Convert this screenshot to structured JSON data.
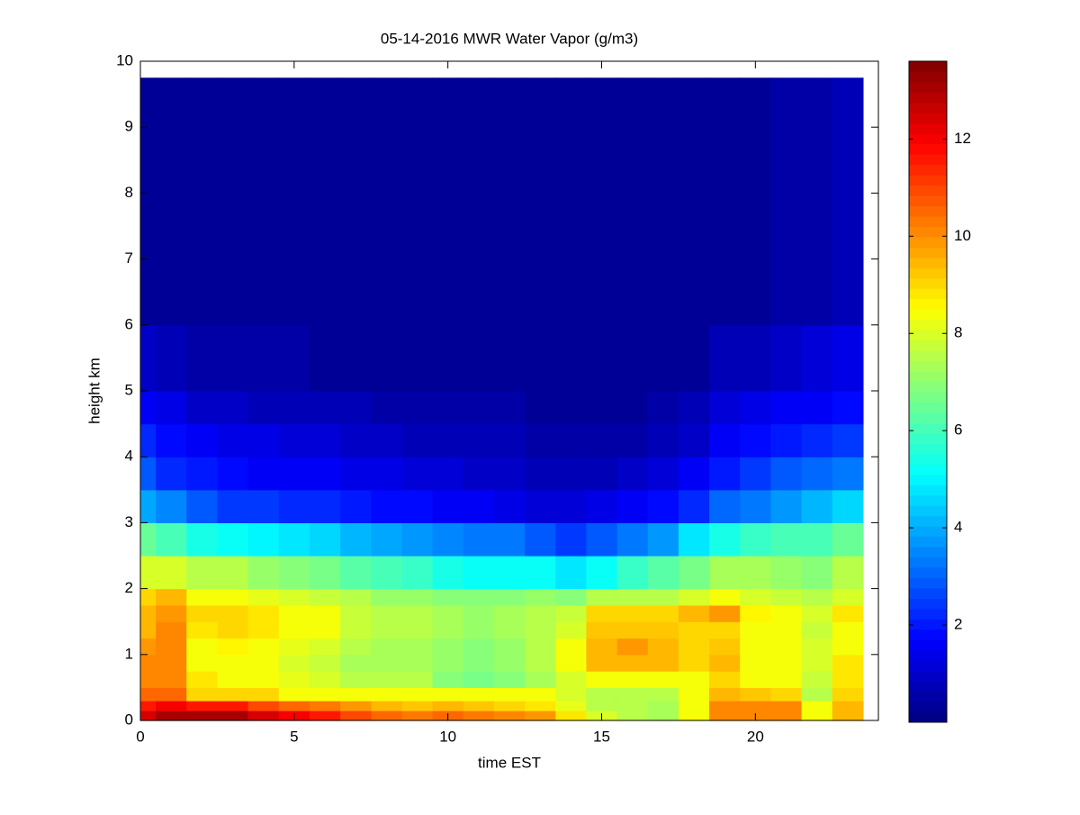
{
  "chart_data": {
    "type": "heatmap",
    "title": "05-14-2016 MWR Water Vapor (g/m3)",
    "x_label": "time EST",
    "y_label": "height km",
    "xlim": [
      0,
      24
    ],
    "ylim": [
      0,
      10
    ],
    "xticks": [
      0,
      5,
      10,
      15,
      20
    ],
    "yticks": [
      0,
      1,
      2,
      3,
      4,
      5,
      6,
      7,
      8,
      9,
      10
    ],
    "x_bins": [
      0,
      0.5,
      1.5,
      2.5,
      3.5,
      4.5,
      5.5,
      6.5,
      7.5,
      8.5,
      9.5,
      10.5,
      11.5,
      12.5,
      13.5,
      14.5,
      15.5,
      16.5,
      17.5,
      18.5,
      19.5,
      20.5,
      21.5,
      22.5,
      23.5
    ],
    "y_bins": [
      0,
      0.15,
      0.3,
      0.5,
      0.75,
      1.0,
      1.25,
      1.5,
      1.75,
      2.0,
      2.5,
      3.0,
      3.5,
      4.0,
      4.5,
      5.0,
      6.0,
      9.75
    ],
    "colormap": "jet",
    "zlim": [
      0,
      13.6
    ],
    "zticks": [
      2,
      4,
      6,
      8,
      10,
      12
    ],
    "z": [
      [
        12.5,
        11.5,
        10.5,
        10,
        10,
        9.8,
        9.5,
        9.5,
        9,
        8,
        6.5,
        4,
        2.8,
        2.2,
        1.5,
        1.0,
        0.4
      ],
      [
        13,
        12,
        10.5,
        10,
        10,
        10,
        10,
        9.8,
        9.5,
        8,
        6,
        3.5,
        2.3,
        1.8,
        1.3,
        0.8,
        0.3
      ],
      [
        13,
        11.5,
        9,
        8.8,
        8.5,
        8.5,
        8.8,
        9,
        8.5,
        7.5,
        5.5,
        2.8,
        2.0,
        1.5,
        1.0,
        0.6,
        0.3
      ],
      [
        13,
        11.5,
        9,
        8.5,
        8.5,
        8.7,
        9,
        9,
        8.5,
        7.5,
        5.3,
        2.5,
        1.8,
        1.4,
        0.9,
        0.5,
        0.3
      ],
      [
        12.5,
        11,
        9,
        8.5,
        8.3,
        8.5,
        8.8,
        8.8,
        8.2,
        7.2,
        5.0,
        2.4,
        1.7,
        1.3,
        0.8,
        0.5,
        0.3
      ],
      [
        12,
        10.5,
        8.5,
        8.2,
        8,
        8.2,
        8.5,
        8.5,
        8,
        7,
        4.8,
        2.3,
        1.6,
        1.2,
        0.8,
        0.5,
        0.3
      ],
      [
        11.5,
        10.3,
        8.3,
        8,
        7.8,
        8,
        8.3,
        8.3,
        7.8,
        6.8,
        4.5,
        2.2,
        1.5,
        1.1,
        0.7,
        0.4,
        0.3
      ],
      [
        11,
        9.8,
        8.5,
        7.5,
        7.3,
        7.5,
        7.8,
        7.8,
        7.5,
        6.3,
        4.2,
        2.0,
        1.4,
        1.0,
        0.7,
        0.4,
        0.3
      ],
      [
        10.5,
        9.5,
        8.3,
        7.5,
        7.3,
        7.3,
        7.5,
        7.5,
        7.2,
        6,
        4,
        1.9,
        1.3,
        0.9,
        0.6,
        0.4,
        0.3
      ],
      [
        10.3,
        9.3,
        8.3,
        7.5,
        7.3,
        7.3,
        7.5,
        7.5,
        7.2,
        5.8,
        3.8,
        1.8,
        1.2,
        0.8,
        0.6,
        0.4,
        0.3
      ],
      [
        10.5,
        9.5,
        8.5,
        7,
        7.2,
        7.2,
        7.3,
        7.3,
        7,
        5.5,
        3.5,
        1.6,
        1.1,
        0.8,
        0.5,
        0.3,
        0.3
      ],
      [
        10.3,
        9.3,
        8.5,
        6.8,
        7,
        7,
        7.2,
        7.2,
        7,
        5.3,
        3.3,
        1.5,
        1.0,
        0.7,
        0.5,
        0.3,
        0.3
      ],
      [
        10,
        9,
        8.3,
        7,
        7.2,
        7.2,
        7.3,
        7.3,
        7,
        5.3,
        3.2,
        1.4,
        0.9,
        0.7,
        0.5,
        0.3,
        0.3
      ],
      [
        9.8,
        8.8,
        8.3,
        7.3,
        7.5,
        7.5,
        7.5,
        7.5,
        7.2,
        5.2,
        2.8,
        1.2,
        0.8,
        0.6,
        0.4,
        0.3,
        0.3
      ],
      [
        8.8,
        8.2,
        8,
        8,
        8.5,
        8.3,
        8,
        7.8,
        7,
        4.8,
        2.5,
        1.1,
        0.7,
        0.5,
        0.4,
        0.3,
        0.3
      ],
      [
        8,
        7.5,
        7.5,
        8.5,
        9.5,
        9.5,
        9.2,
        9,
        7.5,
        5.3,
        2.8,
        1.3,
        0.8,
        0.6,
        0.4,
        0.3,
        0.3
      ],
      [
        7.5,
        7.5,
        7.5,
        8.5,
        9.5,
        9.8,
        9.3,
        9,
        7.5,
        5.8,
        3.2,
        1.5,
        0.9,
        0.6,
        0.4,
        0.3,
        0.3
      ],
      [
        7.3,
        7.3,
        7.5,
        8.5,
        9.5,
        9.5,
        9.3,
        9,
        7.5,
        6.3,
        3.8,
        1.8,
        1.1,
        0.7,
        0.5,
        0.3,
        0.3
      ],
      [
        8.5,
        8.5,
        8.5,
        8.5,
        9,
        9,
        9,
        9.5,
        8,
        6.8,
        4.8,
        2.3,
        1.5,
        1.0,
        0.7,
        0.4,
        0.3
      ],
      [
        10,
        10,
        9.5,
        9,
        9.5,
        9.3,
        9,
        9.8,
        8.5,
        7.3,
        5.5,
        3.0,
        2.0,
        1.5,
        1.1,
        0.7,
        0.4
      ],
      [
        10,
        10,
        9.3,
        8.5,
        8.5,
        8.5,
        8.5,
        8.7,
        8,
        7.3,
        5.8,
        3.3,
        2.5,
        1.8,
        1.3,
        0.8,
        0.4
      ],
      [
        10,
        10,
        9,
        8.5,
        8.5,
        8.3,
        8.3,
        8.5,
        7.8,
        7.2,
        6,
        3.8,
        2.8,
        2.0,
        1.5,
        1.0,
        0.5
      ],
      [
        8.5,
        8.5,
        7.5,
        7.8,
        8,
        8,
        7.8,
        8,
        7.5,
        7,
        6,
        4.2,
        3.0,
        2.2,
        1.6,
        1.1,
        0.6
      ],
      [
        9.5,
        9.5,
        9,
        8.8,
        8.8,
        8.5,
        8.3,
        8.8,
        8,
        7.5,
        6.5,
        4.5,
        3.3,
        2.5,
        1.8,
        1.3,
        0.7
      ]
    ]
  }
}
